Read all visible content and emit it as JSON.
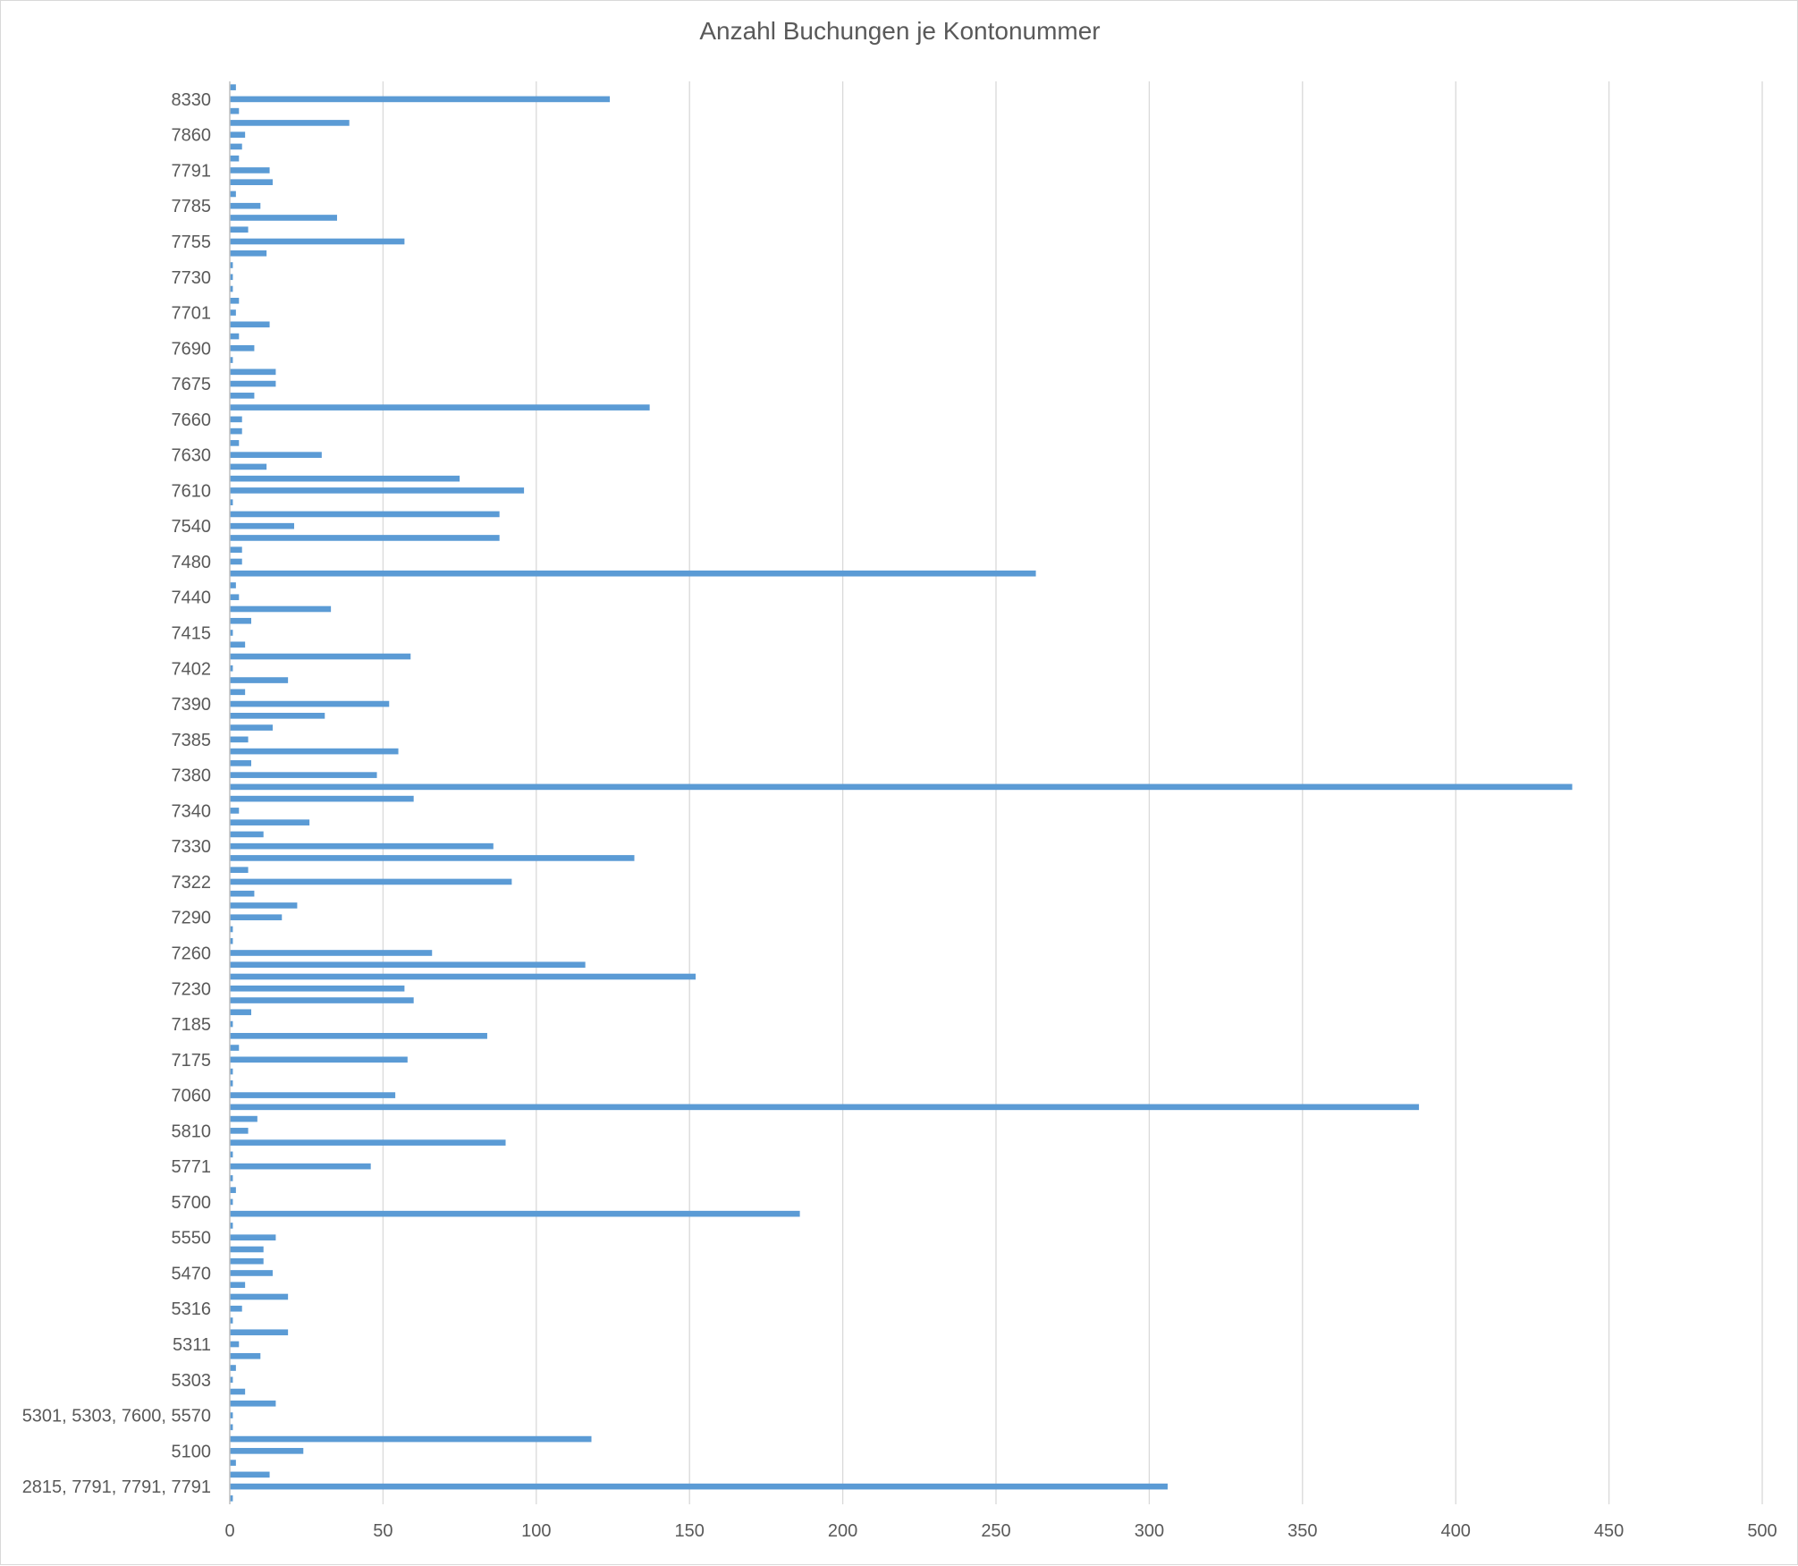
{
  "chart_data": {
    "type": "bar",
    "orientation": "horizontal",
    "title": "Anzahl Buchungen je Kontonummer",
    "xlabel": "",
    "ylabel": "",
    "xlim": [
      0,
      500
    ],
    "x_ticks": [
      0,
      50,
      100,
      150,
      200,
      250,
      300,
      350,
      400,
      450,
      500
    ],
    "grid": "vertical",
    "legend": "none",
    "bar_color": "#5b9bd5",
    "category_labels_bottom_to_top": [
      "2815, 7791, 7791, 7791",
      "5100",
      "5301, 5303, 7600, 5570",
      "5303",
      "5311",
      "5316",
      "5470",
      "5550",
      "5700",
      "5771",
      "5810",
      "7060",
      "7175",
      "7185",
      "7230",
      "7260",
      "7290",
      "7322",
      "7330",
      "7340",
      "7380",
      "7385",
      "7390",
      "7402",
      "7415",
      "7440",
      "7480",
      "7540",
      "7610",
      "7630",
      "7660",
      "7675",
      "7690",
      "7701",
      "7730",
      "7755",
      "7785",
      "7791",
      "7860",
      "8330"
    ],
    "values_bottom_to_top": [
      1,
      306,
      13,
      2,
      24,
      118,
      1,
      1,
      15,
      5,
      1,
      2,
      10,
      3,
      19,
      1,
      4,
      19,
      5,
      14,
      11,
      11,
      15,
      1,
      186,
      1,
      2,
      1,
      46,
      1,
      90,
      6,
      9,
      388,
      54,
      1,
      1,
      58,
      3,
      84,
      1,
      7,
      60,
      57,
      152,
      116,
      66,
      1,
      1,
      17,
      22,
      8,
      92,
      6,
      132,
      86,
      11,
      26,
      3,
      60,
      438,
      48,
      7,
      55,
      6,
      14,
      31,
      52,
      5,
      19,
      1,
      59,
      5,
      1,
      7,
      33,
      3,
      2,
      263,
      4,
      4,
      88,
      21,
      88,
      1,
      96,
      75,
      12,
      30,
      3,
      4,
      4,
      137,
      8,
      15,
      15,
      1,
      8,
      3,
      13,
      2,
      3,
      1,
      1,
      1,
      12,
      57,
      6,
      35,
      10,
      2,
      14,
      13,
      3,
      4,
      5,
      39,
      3,
      124,
      2
    ]
  }
}
